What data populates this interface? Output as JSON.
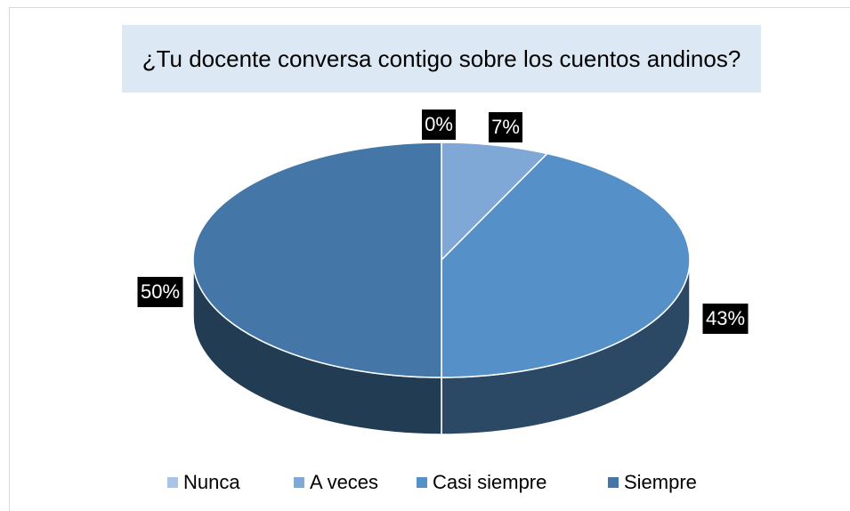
{
  "chart_data": {
    "type": "pie",
    "title": "¿Tu docente conversa contigo sobre los cuentos andinos?",
    "categories": [
      "Nunca",
      "A veces",
      "Casi siempre",
      "Siempre"
    ],
    "values": [
      0,
      7,
      43,
      50
    ],
    "value_labels": [
      "0%",
      "7%",
      "43%",
      "50%"
    ],
    "colors": [
      "#a9c4e4",
      "#7fa8d6",
      "#5590c8",
      "#4477a8"
    ],
    "legend": "bottom"
  }
}
